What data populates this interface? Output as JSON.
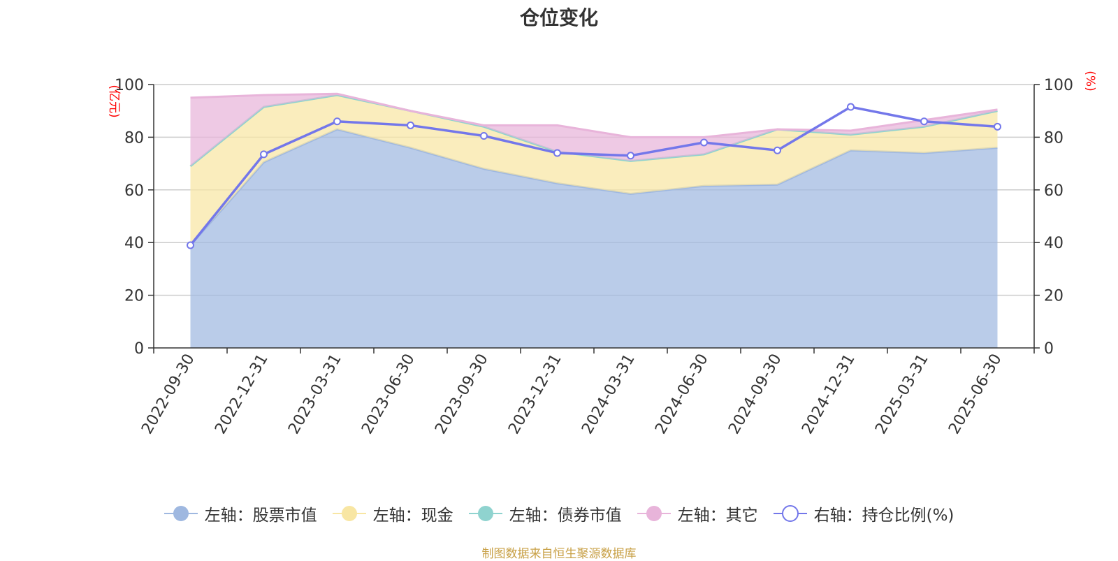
{
  "chart_data": {
    "type": "area",
    "title": "仓位变化",
    "left_axis_unit": "(亿元)",
    "right_axis_unit": "(%)",
    "categories": [
      "2022-09-30",
      "2022-12-31",
      "2023-03-31",
      "2023-06-30",
      "2023-09-30",
      "2023-12-31",
      "2024-03-31",
      "2024-06-30",
      "2024-09-30",
      "2024-12-31",
      "2025-03-31",
      "2025-06-30"
    ],
    "left_ylim": [
      0,
      100
    ],
    "right_ylim": [
      0,
      100
    ],
    "yticks": [
      0,
      20,
      40,
      60,
      80,
      100
    ],
    "stacked_series": [
      {
        "name": "左轴：股票市值",
        "color": "#9fb8e0",
        "values": [
          39,
          70.5,
          83,
          76,
          68,
          62.5,
          58.5,
          61.5,
          62,
          75,
          74,
          76
        ]
      },
      {
        "name": "左轴：现金",
        "color": "#f8e6a3",
        "values": [
          30,
          21,
          13,
          14,
          16,
          12,
          12.5,
          12,
          21,
          6,
          10,
          14
        ]
      },
      {
        "name": "左轴：债券市值",
        "color": "#8fd3cf",
        "values": [
          0,
          0,
          0,
          0,
          0,
          0,
          0,
          0,
          0,
          0,
          0,
          0
        ]
      },
      {
        "name": "左轴：其它",
        "color": "#e8b4da",
        "values": [
          26,
          4.5,
          0.5,
          0,
          0.5,
          10,
          9,
          6.5,
          0,
          1.5,
          2.5,
          0.5
        ]
      }
    ],
    "line_series": {
      "name": "右轴：持仓比例(%)",
      "color": "#7377ea",
      "values": [
        39,
        73.5,
        86,
        84.5,
        80.5,
        74,
        73,
        78,
        75,
        91.5,
        86,
        84
      ]
    },
    "grid": true,
    "legend_position": "bottom"
  },
  "source_note": "制图数据来自恒生聚源数据库"
}
